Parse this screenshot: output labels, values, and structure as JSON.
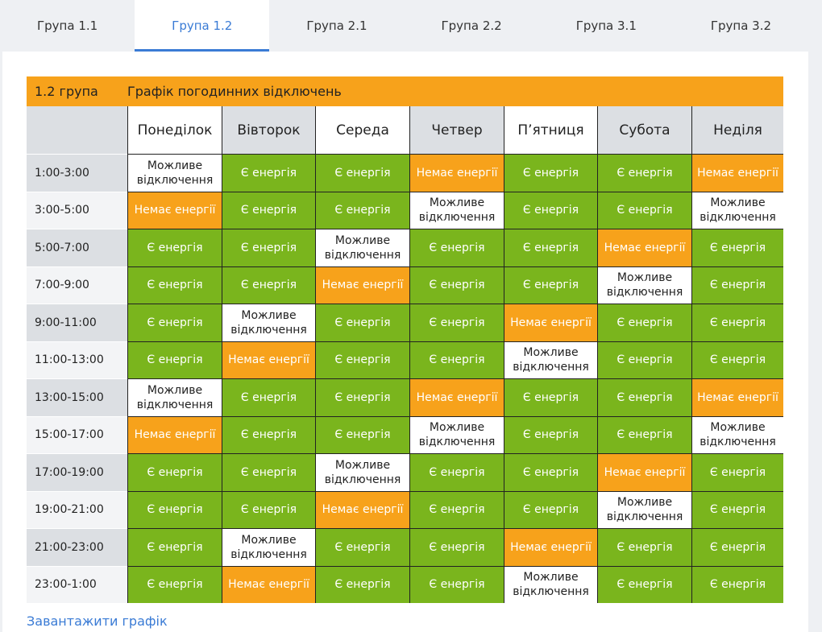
{
  "tabs": [
    "Група 1.1",
    "Група 1.2",
    "Група 2.1",
    "Група 2.2",
    "Група 3.1",
    "Група 3.2"
  ],
  "active_tab": 1,
  "schedule": {
    "group_label": "1.2 група",
    "title": "Графік погодинних відключень",
    "days": [
      "Понеділок",
      "Вівторок",
      "Середа",
      "Четвер",
      "П’ятниця",
      "Субота",
      "Неділя"
    ],
    "status_labels": {
      "yes": "Є енергія",
      "no": "Немає енергії",
      "maybe": "Можливе відключення"
    },
    "colors": {
      "yes": "#7ab51d",
      "no": "#f7a21b",
      "maybe": "#ffffff"
    },
    "rows": [
      {
        "time": "1:00-3:00",
        "cells": [
          "maybe",
          "yes",
          "yes",
          "no",
          "yes",
          "yes",
          "no"
        ]
      },
      {
        "time": "3:00-5:00",
        "cells": [
          "no",
          "yes",
          "yes",
          "maybe",
          "yes",
          "yes",
          "maybe"
        ]
      },
      {
        "time": "5:00-7:00",
        "cells": [
          "yes",
          "yes",
          "maybe",
          "yes",
          "yes",
          "no",
          "yes"
        ]
      },
      {
        "time": "7:00-9:00",
        "cells": [
          "yes",
          "yes",
          "no",
          "yes",
          "yes",
          "maybe",
          "yes"
        ]
      },
      {
        "time": "9:00-11:00",
        "cells": [
          "yes",
          "maybe",
          "yes",
          "yes",
          "no",
          "yes",
          "yes"
        ]
      },
      {
        "time": "11:00-13:00",
        "cells": [
          "yes",
          "no",
          "yes",
          "yes",
          "maybe",
          "yes",
          "yes"
        ]
      },
      {
        "time": "13:00-15:00",
        "cells": [
          "maybe",
          "yes",
          "yes",
          "no",
          "yes",
          "yes",
          "no"
        ]
      },
      {
        "time": "15:00-17:00",
        "cells": [
          "no",
          "yes",
          "yes",
          "maybe",
          "yes",
          "yes",
          "maybe"
        ]
      },
      {
        "time": "17:00-19:00",
        "cells": [
          "yes",
          "yes",
          "maybe",
          "yes",
          "yes",
          "no",
          "yes"
        ]
      },
      {
        "time": "19:00-21:00",
        "cells": [
          "yes",
          "yes",
          "no",
          "yes",
          "yes",
          "maybe",
          "yes"
        ]
      },
      {
        "time": "21:00-23:00",
        "cells": [
          "yes",
          "maybe",
          "yes",
          "yes",
          "no",
          "yes",
          "yes"
        ]
      },
      {
        "time": "23:00-1:00",
        "cells": [
          "yes",
          "no",
          "yes",
          "yes",
          "maybe",
          "yes",
          "yes"
        ]
      }
    ]
  },
  "download_link": "Завантажити графік"
}
